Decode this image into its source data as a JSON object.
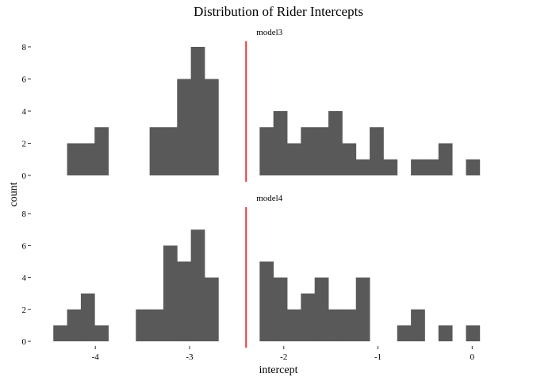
{
  "chart_data": {
    "type": "bar",
    "title": "Distribution of Rider Intercepts",
    "xlabel": "intercept",
    "ylabel": "count",
    "xlim": [
      -4.65,
      0.25
    ],
    "ylim": [
      0,
      8.5
    ],
    "x_ticks": [
      -4,
      -3,
      -2,
      -1,
      0
    ],
    "x_tick_labels": [
      "-4",
      "-3",
      "-2",
      "-1",
      "0"
    ],
    "y_ticks": [
      0,
      2,
      4,
      6,
      8
    ],
    "y_tick_labels": [
      "0",
      "2",
      "4",
      "6",
      "8"
    ],
    "bin_width": 0.146,
    "vline": {
      "x": -2.4,
      "color": "#e8383b"
    },
    "bar_color": "#595959",
    "grid": false,
    "legend": "none",
    "panels": [
      {
        "label": "model3",
        "bin_centers": [
          -4.227,
          -4.081,
          -3.935,
          -3.351,
          -3.205,
          -3.059,
          -2.913,
          -2.767,
          -2.183,
          -2.037,
          -1.891,
          -1.745,
          -1.599,
          -1.453,
          -1.307,
          -1.161,
          -1.015,
          -0.869,
          -0.577,
          -0.431,
          -0.285,
          0.007
        ],
        "counts": [
          2,
          2,
          3,
          3,
          3,
          6,
          8,
          6,
          3,
          4,
          2,
          3,
          3,
          4,
          2,
          1,
          3,
          1,
          1,
          1,
          2,
          1
        ]
      },
      {
        "label": "model4",
        "bin_centers": [
          -4.373,
          -4.227,
          -4.081,
          -3.935,
          -3.497,
          -3.351,
          -3.205,
          -3.059,
          -2.913,
          -2.767,
          -2.183,
          -2.037,
          -1.891,
          -1.745,
          -1.599,
          -1.453,
          -1.307,
          -1.161,
          -0.723,
          -0.577,
          -0.285,
          0.007
        ],
        "counts": [
          1,
          2,
          3,
          1,
          2,
          2,
          6,
          5,
          7,
          4,
          5,
          4,
          2,
          3,
          4,
          2,
          2,
          4,
          1,
          2,
          1,
          1
        ]
      }
    ]
  }
}
